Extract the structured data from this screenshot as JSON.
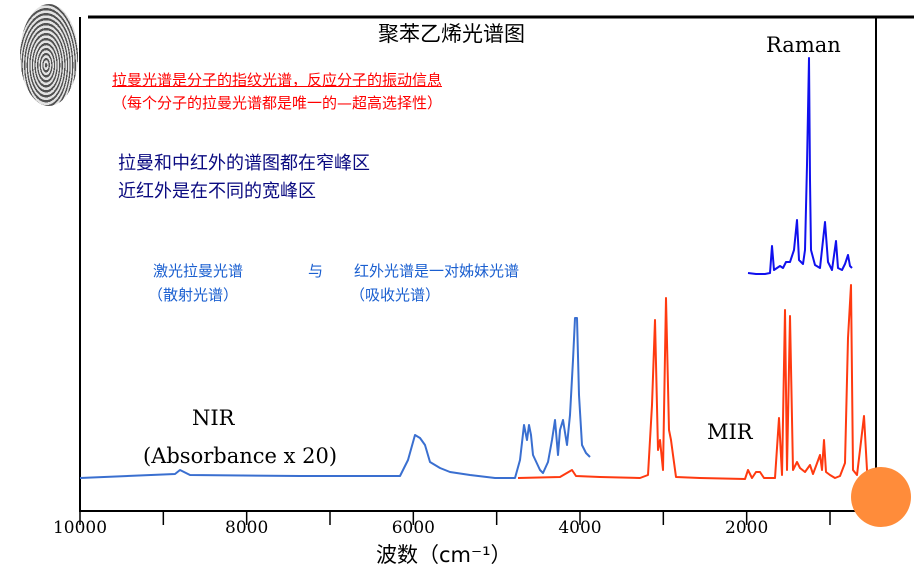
{
  "title": "聚苯乙烯光谱图",
  "notes": {
    "red_line1": "拉曼光谱是分子的指纹光谱，反应分子的振动信息",
    "red_line2": "（每个分子的拉曼光谱都是唯一的—超高选择性）",
    "navy_line1": "拉曼和中红外的谱图都在窄峰区",
    "navy_line2": "近红外是在不同的宽峰区",
    "blue_left1": "激光拉曼光谱",
    "blue_left2": "（散射光谱）",
    "blue_mid": "与",
    "blue_right1": "红外光谱是一对姊妹光谱",
    "blue_right2": "（吸收光谱）"
  },
  "colors": {
    "red_note": "#ff0000",
    "navy_note": "#0a0a80",
    "blue_note": "#1a5fd0",
    "nir": "#3a6fd0",
    "mir": "#ff3a10",
    "raman": "#1010ee",
    "corner_circle": "#ff8c3a"
  },
  "icons": {
    "logo": "fingerprint-image"
  },
  "chart_data": {
    "type": "line",
    "xlabel": "波数（cm⁻¹）",
    "xlim": [
      10000,
      450
    ],
    "x_reversed": true,
    "xticks": [
      10000,
      8000,
      6000,
      4000,
      2000
    ],
    "xtick_labels": [
      "10000",
      "8000",
      "6000",
      "4000",
      "2000"
    ],
    "minor_xticks": [
      9000,
      7000,
      5000,
      3000,
      1000
    ],
    "ylabel": "",
    "grid": false,
    "y_units": "arbitrary (offset traces)",
    "series": [
      {
        "name": "NIR",
        "label_line1": "NIR",
        "label_line2": "(Absorbance x 20)",
        "color": "#3a6fd0",
        "points": [
          [
            10000,
            2
          ],
          [
            8860,
            6
          ],
          [
            8800,
            10
          ],
          [
            8680,
            5
          ],
          [
            7360,
            4
          ],
          [
            6160,
            4
          ],
          [
            6064,
            20
          ],
          [
            5980,
            45
          ],
          [
            5920,
            42
          ],
          [
            5860,
            35
          ],
          [
            5800,
            18
          ],
          [
            5680,
            12
          ],
          [
            5560,
            8
          ],
          [
            5320,
            5
          ],
          [
            5020,
            2
          ],
          [
            4780,
            2
          ],
          [
            4720,
            20
          ],
          [
            4672,
            55
          ],
          [
            4636,
            40
          ],
          [
            4612,
            55
          ],
          [
            4588,
            45
          ],
          [
            4564,
            25
          ],
          [
            4480,
            10
          ],
          [
            4444,
            7
          ],
          [
            4384,
            18
          ],
          [
            4336,
            40
          ],
          [
            4300,
            60
          ],
          [
            4264,
            25
          ],
          [
            4240,
            50
          ],
          [
            4204,
            60
          ],
          [
            4156,
            35
          ],
          [
            4120,
            65
          ],
          [
            4084,
            120
          ],
          [
            4060,
            162
          ],
          [
            4036,
            162
          ],
          [
            4012,
            85
          ],
          [
            3976,
            35
          ],
          [
            3928,
            27
          ],
          [
            3880,
            23
          ]
        ]
      },
      {
        "name": "MIR",
        "label_line1": "MIR",
        "color": "#ff3a10",
        "points": [
          [
            4744,
            2
          ],
          [
            4240,
            3
          ],
          [
            4096,
            10
          ],
          [
            4048,
            4
          ],
          [
            3760,
            3
          ],
          [
            3280,
            2
          ],
          [
            3184,
            5
          ],
          [
            3136,
            75
          ],
          [
            3100,
            160
          ],
          [
            3064,
            30
          ],
          [
            3040,
            40
          ],
          [
            3004,
            10
          ],
          [
            2968,
            182
          ],
          [
            2932,
            50
          ],
          [
            2908,
            40
          ],
          [
            2884,
            25
          ],
          [
            2848,
            3
          ],
          [
            2560,
            2
          ],
          [
            2020,
            1
          ],
          [
            1984,
            10
          ],
          [
            1936,
            2
          ],
          [
            1888,
            8
          ],
          [
            1840,
            8
          ],
          [
            1792,
            2
          ],
          [
            1660,
            2
          ],
          [
            1612,
            62
          ],
          [
            1576,
            5
          ],
          [
            1540,
            170
          ],
          [
            1516,
            10
          ],
          [
            1480,
            164
          ],
          [
            1444,
            10
          ],
          [
            1396,
            18
          ],
          [
            1360,
            12
          ],
          [
            1300,
            8
          ],
          [
            1240,
            15
          ],
          [
            1204,
            6
          ],
          [
            1168,
            14
          ],
          [
            1120,
            25
          ],
          [
            1096,
            10
          ],
          [
            1072,
            40
          ],
          [
            1048,
            8
          ],
          [
            1000,
            5
          ],
          [
            940,
            2
          ],
          [
            880,
            4
          ],
          [
            820,
            17
          ],
          [
            784,
            142
          ],
          [
            748,
            195
          ],
          [
            724,
            10
          ],
          [
            676,
            5
          ],
          [
            640,
            30
          ],
          [
            592,
            64
          ],
          [
            556,
            10
          ],
          [
            520,
            1
          ],
          [
            484,
            1
          ]
        ]
      },
      {
        "name": "Raman",
        "label_line1": "Raman",
        "color": "#1010ee",
        "points": [
          [
            1984,
            207
          ],
          [
            1888,
            206
          ],
          [
            1780,
            206
          ],
          [
            1720,
            207
          ],
          [
            1696,
            234
          ],
          [
            1672,
            210
          ],
          [
            1600,
            214
          ],
          [
            1564,
            212
          ],
          [
            1528,
            218
          ],
          [
            1480,
            218
          ],
          [
            1432,
            230
          ],
          [
            1396,
            260
          ],
          [
            1372,
            220
          ],
          [
            1324,
            216
          ],
          [
            1300,
            230
          ],
          [
            1276,
            315
          ],
          [
            1252,
            422
          ],
          [
            1240,
            300
          ],
          [
            1228,
            230
          ],
          [
            1180,
            215
          ],
          [
            1120,
            212
          ],
          [
            1060,
            258
          ],
          [
            1024,
            218
          ],
          [
            976,
            210
          ],
          [
            928,
            239
          ],
          [
            904,
            212
          ],
          [
            856,
            210
          ],
          [
            820,
            216
          ],
          [
            784,
            225
          ],
          [
            760,
            214
          ],
          [
            736,
            212
          ]
        ]
      }
    ]
  }
}
